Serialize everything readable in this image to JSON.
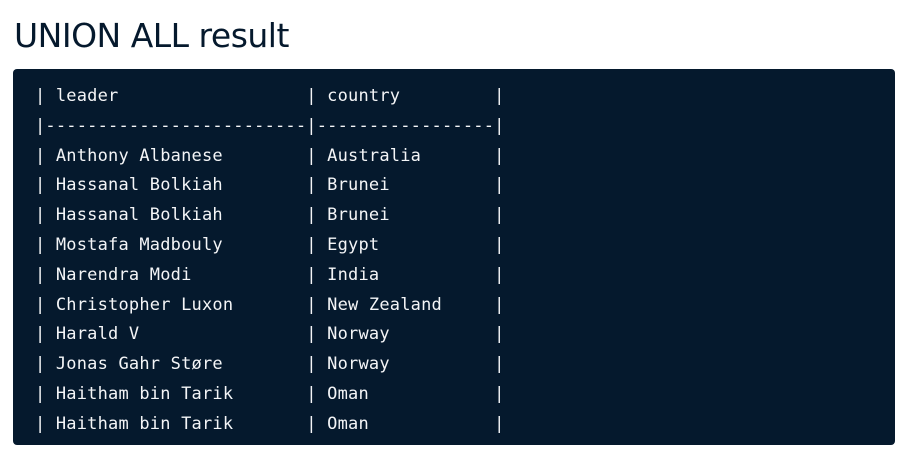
{
  "heading": "UNION ALL result",
  "table_lines": [
    "| leader                  | country         |",
    "|-------------------------|-----------------|",
    "| Anthony Albanese        | Australia       |",
    "| Hassanal Bolkiah        | Brunei          |",
    "| Hassanal Bolkiah        | Brunei          |",
    "| Mostafa Madbouly        | Egypt           |",
    "| Narendra Modi           | India           |",
    "| Christopher Luxon       | New Zealand     |",
    "| Harald V                | Norway          |",
    "| Jonas Gahr Støre        | Norway          |",
    "| Haitham bin Tarik       | Oman            |",
    "| Haitham bin Tarik       | Oman            |"
  ],
  "colors": {
    "heading_text": "#05192d",
    "code_background": "#05192d",
    "code_text": "#f4f5f7"
  }
}
